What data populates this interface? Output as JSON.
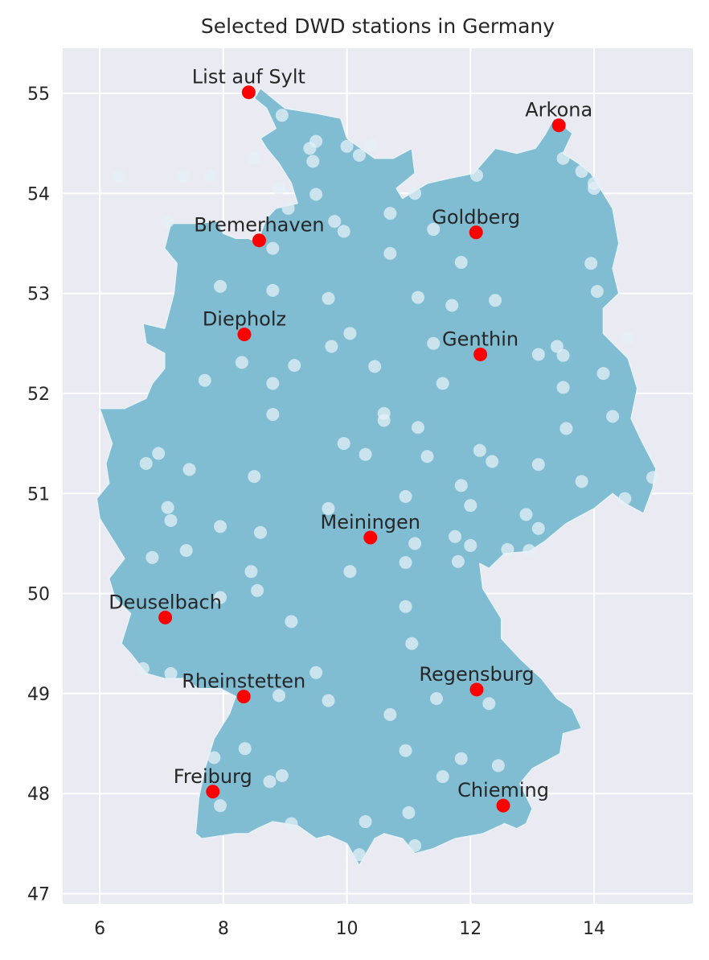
{
  "chart_data": {
    "type": "scatter",
    "title": "Selected DWD stations in Germany",
    "xlabel": "",
    "ylabel": "",
    "xlim": [
      5.4,
      15.6
    ],
    "ylim": [
      46.9,
      55.45
    ],
    "xticks": [
      "6",
      "8",
      "10",
      "12",
      "14"
    ],
    "yticks": [
      "47",
      "48",
      "49",
      "50",
      "51",
      "52",
      "53",
      "54",
      "55"
    ],
    "grid": true,
    "colors": {
      "background": "#eaeaf2",
      "land": "#80bdd3",
      "all_stations": "#e4f0f6",
      "selected_stations": "#ff0000",
      "grid": "#ffffff"
    },
    "series": [
      {
        "kind": "all_stations",
        "points": [
          [
            6.3,
            54.17
          ],
          [
            7.1,
            53.72
          ],
          [
            7.35,
            54.17
          ],
          [
            7.8,
            54.18
          ],
          [
            8.5,
            54.35
          ],
          [
            8.95,
            54.78
          ],
          [
            9.5,
            54.52
          ],
          [
            9.4,
            54.45
          ],
          [
            9.45,
            54.32
          ],
          [
            9.5,
            53.99
          ],
          [
            10.0,
            54.47
          ],
          [
            10.2,
            54.38
          ],
          [
            10.4,
            54.48
          ],
          [
            11.1,
            54.0
          ],
          [
            12.1,
            54.18
          ],
          [
            13.5,
            54.35
          ],
          [
            13.8,
            54.22
          ],
          [
            14.0,
            54.1
          ],
          [
            14.0,
            54.05
          ],
          [
            8.9,
            54.05
          ],
          [
            9.05,
            53.85
          ],
          [
            9.8,
            53.72
          ],
          [
            9.95,
            53.62
          ],
          [
            10.7,
            53.8
          ],
          [
            11.4,
            53.64
          ],
          [
            11.85,
            53.31
          ],
          [
            12.4,
            52.93
          ],
          [
            13.95,
            53.3
          ],
          [
            14.05,
            53.02
          ],
          [
            8.8,
            53.45
          ],
          [
            7.95,
            53.07
          ],
          [
            8.8,
            53.03
          ],
          [
            10.7,
            53.4
          ],
          [
            9.7,
            52.95
          ],
          [
            11.15,
            52.96
          ],
          [
            11.7,
            52.88
          ],
          [
            10.05,
            52.6
          ],
          [
            9.75,
            52.47
          ],
          [
            8.3,
            52.31
          ],
          [
            7.7,
            52.13
          ],
          [
            8.8,
            52.1
          ],
          [
            9.15,
            52.28
          ],
          [
            10.45,
            52.27
          ],
          [
            11.4,
            52.5
          ],
          [
            11.55,
            52.1
          ],
          [
            13.1,
            52.39
          ],
          [
            13.4,
            52.47
          ],
          [
            13.5,
            52.38
          ],
          [
            14.15,
            52.2
          ],
          [
            14.55,
            52.55
          ],
          [
            13.5,
            52.06
          ],
          [
            8.8,
            51.79
          ],
          [
            10.6,
            51.8
          ],
          [
            10.6,
            51.73
          ],
          [
            11.15,
            51.66
          ],
          [
            9.95,
            51.5
          ],
          [
            10.3,
            51.39
          ],
          [
            11.3,
            51.37
          ],
          [
            12.15,
            51.43
          ],
          [
            12.35,
            51.32
          ],
          [
            13.1,
            51.29
          ],
          [
            13.55,
            51.65
          ],
          [
            14.3,
            51.77
          ],
          [
            13.8,
            51.12
          ],
          [
            14.95,
            51.16
          ],
          [
            14.5,
            50.95
          ],
          [
            6.95,
            51.4
          ],
          [
            6.75,
            51.3
          ],
          [
            7.45,
            51.24
          ],
          [
            8.5,
            51.17
          ],
          [
            9.7,
            50.85
          ],
          [
            10.95,
            50.97
          ],
          [
            11.85,
            51.08
          ],
          [
            12.0,
            50.88
          ],
          [
            12.9,
            50.79
          ],
          [
            13.1,
            50.65
          ],
          [
            12.95,
            50.43
          ],
          [
            12.6,
            50.44
          ],
          [
            12.0,
            50.48
          ],
          [
            11.75,
            50.57
          ],
          [
            11.8,
            50.32
          ],
          [
            11.1,
            50.5
          ],
          [
            10.95,
            50.31
          ],
          [
            7.1,
            50.86
          ],
          [
            7.15,
            50.73
          ],
          [
            7.95,
            50.67
          ],
          [
            8.6,
            50.61
          ],
          [
            6.85,
            50.36
          ],
          [
            7.4,
            50.43
          ],
          [
            8.45,
            50.22
          ],
          [
            10.05,
            50.22
          ],
          [
            8.55,
            50.03
          ],
          [
            7.95,
            49.96
          ],
          [
            9.1,
            49.72
          ],
          [
            10.95,
            49.87
          ],
          [
            11.05,
            49.5
          ],
          [
            6.7,
            49.25
          ],
          [
            7.15,
            49.2
          ],
          [
            9.5,
            49.21
          ],
          [
            9.7,
            48.93
          ],
          [
            8.9,
            48.98
          ],
          [
            10.7,
            48.79
          ],
          [
            11.45,
            48.95
          ],
          [
            12.3,
            48.9
          ],
          [
            8.35,
            48.45
          ],
          [
            7.85,
            48.36
          ],
          [
            10.95,
            48.43
          ],
          [
            11.85,
            48.35
          ],
          [
            12.45,
            48.28
          ],
          [
            11.55,
            48.17
          ],
          [
            8.95,
            48.18
          ],
          [
            8.75,
            48.12
          ],
          [
            7.95,
            47.88
          ],
          [
            9.1,
            47.7
          ],
          [
            10.3,
            47.72
          ],
          [
            11.0,
            47.81
          ],
          [
            11.1,
            47.48
          ],
          [
            10.2,
            47.39
          ]
        ]
      },
      {
        "kind": "selected_stations",
        "points": [
          {
            "name": "List auf Sylt",
            "lon": 8.41,
            "lat": 55.01
          },
          {
            "name": "Arkona",
            "lon": 13.43,
            "lat": 54.68
          },
          {
            "name": "Bremerhaven",
            "lon": 8.58,
            "lat": 53.53
          },
          {
            "name": "Goldberg",
            "lon": 12.09,
            "lat": 53.61
          },
          {
            "name": "Diepholz",
            "lon": 8.34,
            "lat": 52.59
          },
          {
            "name": "Genthin",
            "lon": 12.16,
            "lat": 52.39
          },
          {
            "name": "Meiningen",
            "lon": 10.38,
            "lat": 50.56
          },
          {
            "name": "Deuselbach",
            "lon": 7.06,
            "lat": 49.76
          },
          {
            "name": "Regensburg",
            "lon": 12.1,
            "lat": 49.04
          },
          {
            "name": "Rheinstetten",
            "lon": 8.33,
            "lat": 48.97
          },
          {
            "name": "Freiburg",
            "lon": 7.83,
            "lat": 48.02
          },
          {
            "name": "Chieming",
            "lon": 12.53,
            "lat": 47.88
          }
        ]
      }
    ],
    "germany_outline": [
      [
        8.0,
        53.6
      ],
      [
        8.2,
        53.55
      ],
      [
        8.4,
        53.55
      ],
      [
        8.55,
        53.52
      ],
      [
        8.7,
        53.75
      ],
      [
        8.85,
        53.85
      ],
      [
        9.2,
        53.9
      ],
      [
        9.1,
        54.1
      ],
      [
        8.9,
        54.3
      ],
      [
        8.7,
        54.45
      ],
      [
        8.6,
        54.55
      ],
      [
        8.85,
        54.65
      ],
      [
        8.7,
        54.85
      ],
      [
        8.5,
        54.95
      ],
      [
        8.6,
        55.05
      ],
      [
        9.0,
        54.85
      ],
      [
        9.5,
        54.8
      ],
      [
        9.9,
        54.75
      ],
      [
        10.0,
        54.55
      ],
      [
        10.45,
        54.35
      ],
      [
        10.75,
        54.35
      ],
      [
        11.05,
        54.45
      ],
      [
        11.1,
        54.2
      ],
      [
        10.8,
        54.05
      ],
      [
        10.9,
        53.95
      ],
      [
        11.3,
        54.1
      ],
      [
        11.65,
        54.15
      ],
      [
        12.05,
        54.2
      ],
      [
        12.4,
        54.45
      ],
      [
        12.75,
        54.4
      ],
      [
        13.05,
        54.45
      ],
      [
        13.2,
        54.58
      ],
      [
        13.35,
        54.75
      ],
      [
        13.65,
        54.6
      ],
      [
        13.5,
        54.4
      ],
      [
        13.75,
        54.3
      ],
      [
        13.95,
        54.2
      ],
      [
        14.2,
        53.95
      ],
      [
        14.3,
        53.85
      ],
      [
        14.4,
        53.5
      ],
      [
        14.3,
        53.25
      ],
      [
        14.4,
        53.0
      ],
      [
        14.15,
        52.85
      ],
      [
        14.15,
        52.6
      ],
      [
        14.55,
        52.35
      ],
      [
        14.7,
        52.05
      ],
      [
        14.6,
        51.75
      ],
      [
        14.75,
        51.55
      ],
      [
        15.0,
        51.25
      ],
      [
        14.95,
        51.05
      ],
      [
        14.8,
        50.8
      ],
      [
        14.5,
        50.9
      ],
      [
        14.3,
        51.0
      ],
      [
        14.0,
        50.85
      ],
      [
        13.55,
        50.7
      ],
      [
        13.2,
        50.52
      ],
      [
        12.95,
        50.42
      ],
      [
        12.55,
        50.4
      ],
      [
        12.3,
        50.25
      ],
      [
        12.15,
        50.3
      ],
      [
        12.2,
        50.05
      ],
      [
        12.5,
        49.75
      ],
      [
        12.5,
        49.55
      ],
      [
        12.8,
        49.35
      ],
      [
        13.15,
        49.15
      ],
      [
        13.4,
        48.95
      ],
      [
        13.65,
        48.85
      ],
      [
        13.8,
        48.65
      ],
      [
        13.5,
        48.6
      ],
      [
        13.45,
        48.4
      ],
      [
        13.0,
        48.25
      ],
      [
        12.8,
        48.1
      ],
      [
        13.0,
        47.85
      ],
      [
        12.9,
        47.7
      ],
      [
        12.75,
        47.65
      ],
      [
        12.55,
        47.7
      ],
      [
        12.2,
        47.6
      ],
      [
        11.75,
        47.55
      ],
      [
        11.4,
        47.45
      ],
      [
        11.1,
        47.4
      ],
      [
        10.9,
        47.55
      ],
      [
        10.6,
        47.6
      ],
      [
        10.45,
        47.55
      ],
      [
        10.2,
        47.28
      ],
      [
        10.0,
        47.5
      ],
      [
        9.7,
        47.58
      ],
      [
        9.5,
        47.55
      ],
      [
        9.2,
        47.68
      ],
      [
        8.8,
        47.72
      ],
      [
        8.55,
        47.65
      ],
      [
        8.4,
        47.6
      ],
      [
        8.2,
        47.6
      ],
      [
        7.65,
        47.55
      ],
      [
        7.55,
        47.6
      ],
      [
        7.6,
        47.95
      ],
      [
        7.7,
        48.25
      ],
      [
        7.85,
        48.55
      ],
      [
        8.1,
        48.8
      ],
      [
        8.2,
        48.97
      ],
      [
        7.95,
        49.05
      ],
      [
        7.6,
        49.05
      ],
      [
        7.35,
        49.15
      ],
      [
        7.05,
        49.15
      ],
      [
        6.75,
        49.2
      ],
      [
        6.5,
        49.4
      ],
      [
        6.35,
        49.5
      ],
      [
        6.5,
        49.8
      ],
      [
        6.25,
        49.95
      ],
      [
        6.15,
        50.15
      ],
      [
        6.4,
        50.35
      ],
      [
        6.15,
        50.6
      ],
      [
        6.0,
        50.75
      ],
      [
        5.95,
        50.95
      ],
      [
        6.15,
        51.1
      ],
      [
        6.1,
        51.3
      ],
      [
        6.2,
        51.5
      ],
      [
        6.0,
        51.85
      ],
      [
        6.4,
        51.85
      ],
      [
        6.75,
        51.95
      ],
      [
        6.85,
        52.1
      ],
      [
        7.05,
        52.25
      ],
      [
        7.05,
        52.4
      ],
      [
        6.75,
        52.5
      ],
      [
        6.7,
        52.7
      ],
      [
        7.05,
        52.65
      ],
      [
        7.2,
        53.0
      ],
      [
        7.25,
        53.3
      ],
      [
        7.05,
        53.45
      ],
      [
        7.15,
        53.7
      ],
      [
        7.55,
        53.7
      ],
      [
        7.9,
        53.72
      ],
      [
        8.0,
        53.6
      ]
    ]
  }
}
